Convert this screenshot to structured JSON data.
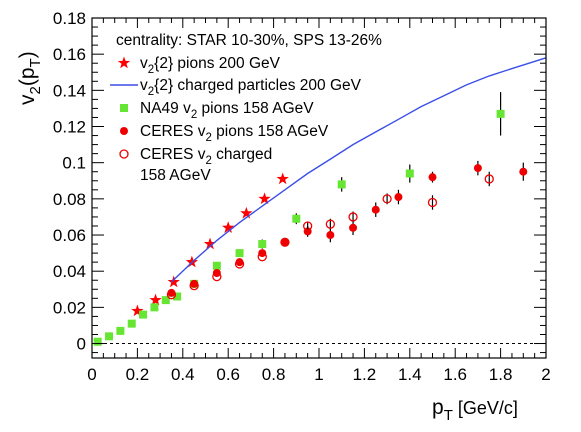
{
  "chart_data": {
    "type": "scatter",
    "title": "",
    "xlabel": {
      "main": "p",
      "sub": "T",
      "unit": " [GeV/c]"
    },
    "ylabel": {
      "a": "v",
      "a_sub": "2",
      "b": "(p",
      "b_sub": "T",
      "c": ")"
    },
    "xlim": [
      0,
      2
    ],
    "ylim": [
      -0.008,
      0.18
    ],
    "x_ticks": [
      0,
      0.2,
      0.4,
      0.6,
      0.8,
      1,
      1.2,
      1.4,
      1.6,
      1.8,
      2
    ],
    "x_tick_labels": [
      "0",
      "0.2",
      "0.4",
      "0.6",
      "0.8",
      "1",
      "1.2",
      "1.4",
      "1.6",
      "1.8",
      "2"
    ],
    "y_ticks": [
      0,
      0.02,
      0.04,
      0.06,
      0.08,
      0.1,
      0.12,
      0.14,
      0.16,
      0.18
    ],
    "y_tick_labels": [
      "0",
      "0.02",
      "0.04",
      "0.06",
      "0.08",
      "0.1",
      "0.12",
      "0.14",
      "0.16",
      "0.18"
    ],
    "grid": false,
    "zero_line": true,
    "legend": {
      "position": "top-left",
      "header": "centrality: STAR 10-30%, SPS 13-26%",
      "entries": [
        {
          "series": 0,
          "parts": [
            {
              "t": "v"
            },
            {
              "t": "2",
              "sub": true
            },
            {
              "t": "{2} pions 200 GeV"
            }
          ]
        },
        {
          "series": 1,
          "parts": [
            {
              "t": "v"
            },
            {
              "t": "2",
              "sub": true
            },
            {
              "t": "{2} charged particles 200 GeV"
            }
          ]
        },
        {
          "series": 2,
          "parts": [
            {
              "t": "NA49 v"
            },
            {
              "t": "2",
              "sub": true
            },
            {
              "t": " pions 158 AGeV"
            }
          ]
        },
        {
          "series": 3,
          "parts": [
            {
              "t": "CERES  v"
            },
            {
              "t": "2",
              "sub": true
            },
            {
              "t": " pions 158 AGeV"
            }
          ]
        },
        {
          "series": 4,
          "parts": [
            {
              "t": "CERES  v"
            },
            {
              "t": "2",
              "sub": true
            },
            {
              "t": " charged"
            }
          ],
          "line2": "158 AGeV"
        }
      ]
    },
    "series": [
      {
        "marker": "star",
        "color": "#ff0000",
        "x": [
          0.2,
          0.28,
          0.36,
          0.44,
          0.52,
          0.6,
          0.68,
          0.76,
          0.84
        ],
        "y": [
          0.018,
          0.024,
          0.034,
          0.045,
          0.055,
          0.064,
          0.072,
          0.08,
          0.091
        ]
      },
      {
        "marker": "line",
        "color": "#3b4fe8",
        "x": [
          0.35,
          0.45,
          0.55,
          0.65,
          0.75,
          0.85,
          0.95,
          1.05,
          1.15,
          1.25,
          1.35,
          1.45,
          1.55,
          1.65,
          1.75,
          1.85,
          1.95,
          2.0
        ],
        "y": [
          0.034,
          0.046,
          0.057,
          0.067,
          0.076,
          0.085,
          0.094,
          0.102,
          0.11,
          0.117,
          0.124,
          0.131,
          0.137,
          0.143,
          0.148,
          0.152,
          0.156,
          0.158
        ]
      },
      {
        "marker": "square",
        "color": "#66e633",
        "x": [
          0.025,
          0.075,
          0.125,
          0.175,
          0.225,
          0.275,
          0.325,
          0.375,
          0.45,
          0.55,
          0.65,
          0.75,
          0.9,
          1.1,
          1.4,
          1.8
        ],
        "y": [
          0.001,
          0.004,
          0.007,
          0.011,
          0.016,
          0.02,
          0.024,
          0.026,
          0.033,
          0.043,
          0.05,
          0.055,
          0.069,
          0.088,
          0.094,
          0.127
        ],
        "err": [
          0,
          0,
          0,
          0,
          0,
          0,
          0,
          0,
          0,
          0,
          0.0015,
          0.0025,
          0.003,
          0.004,
          0.005,
          0.012
        ]
      },
      {
        "marker": "circle",
        "color": "#ee0000",
        "x": [
          0.35,
          0.45,
          0.55,
          0.65,
          0.75,
          0.85,
          0.95,
          1.05,
          1.15,
          1.25,
          1.35,
          1.5,
          1.7,
          1.9
        ],
        "y": [
          0.028,
          0.033,
          0.039,
          0.045,
          0.05,
          0.056,
          0.062,
          0.06,
          0.064,
          0.074,
          0.081,
          0.092,
          0.097,
          0.095
        ],
        "err": [
          0,
          0,
          0,
          0,
          0,
          0,
          0.003,
          0.004,
          0.004,
          0.004,
          0.004,
          0.003,
          0.004,
          0.005
        ]
      },
      {
        "marker": "open-circle",
        "color": "#ee0000",
        "x": [
          0.35,
          0.45,
          0.55,
          0.65,
          0.75,
          0.85,
          0.95,
          1.05,
          1.15,
          1.3,
          1.5,
          1.75
        ],
        "y": [
          0.027,
          0.032,
          0.037,
          0.044,
          0.048,
          0.056,
          0.065,
          0.066,
          0.07,
          0.08,
          0.078,
          0.091
        ],
        "err": [
          0,
          0,
          0,
          0,
          0,
          0,
          0.002,
          0.003,
          0.003,
          0.003,
          0.004,
          0.004
        ]
      }
    ]
  }
}
